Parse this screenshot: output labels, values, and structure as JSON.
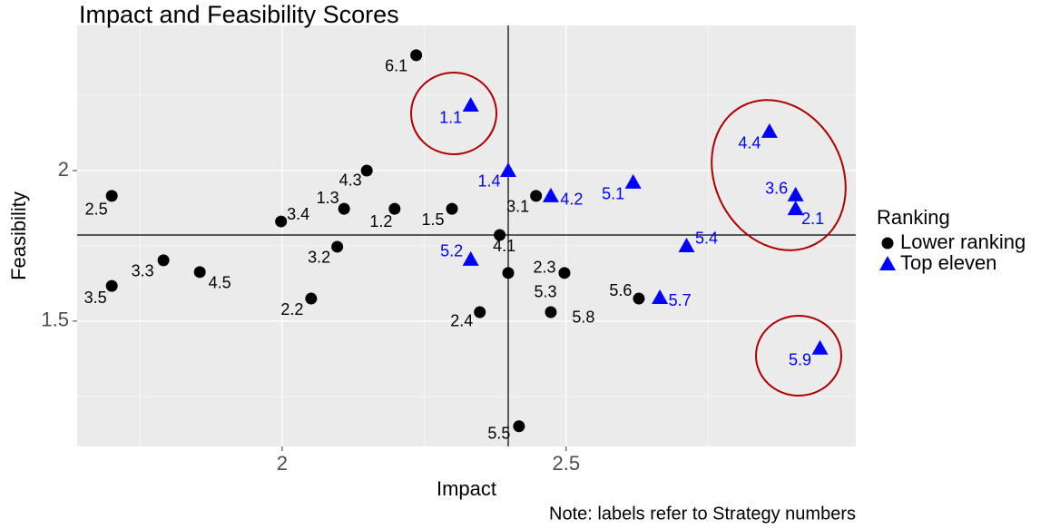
{
  "chart_data": {
    "type": "scatter",
    "title": "Impact and Feasibility Scores",
    "x_label": "Impact",
    "y_label": "Feasibility",
    "note": "Note: labels refer to Strategy numbers",
    "legend_title": "Ranking",
    "xlim": [
      1.639,
      3.01
    ],
    "ylim": [
      1.084,
      2.482
    ],
    "xticks": [
      2.0,
      2.5
    ],
    "yticks": [
      1.5,
      2.0
    ],
    "vline": 2.398,
    "hline": 1.786,
    "grid": true,
    "legend": "right",
    "series": [
      {
        "name": "Lower ranking",
        "color": "#000000",
        "shape": "circle",
        "labels": [
          "6.1",
          "4.3",
          "2.5",
          "1.3",
          "1.2",
          "1.5",
          "3.4",
          "3.1",
          "4.1",
          "3.2",
          "3.3",
          "4.5",
          "3.5",
          "2.3",
          "5.3",
          "2.2",
          "2.4",
          "5.8",
          "5.6",
          "5.5"
        ],
        "x": [
          2.236,
          2.149,
          1.7,
          2.109,
          2.198,
          2.299,
          1.998,
          2.447,
          2.383,
          2.097,
          1.791,
          1.855,
          1.7,
          2.398,
          2.497,
          2.051,
          2.348,
          2.473,
          2.628,
          2.417
        ],
        "values": [
          2.383,
          2.0,
          1.916,
          1.873,
          1.873,
          1.873,
          1.831,
          1.916,
          1.786,
          1.747,
          1.702,
          1.663,
          1.617,
          1.66,
          1.66,
          1.575,
          1.53,
          1.53,
          1.575,
          1.151
        ]
      },
      {
        "name": "Top eleven",
        "color": "#0000ff",
        "shape": "triangle",
        "labels": [
          "1.1",
          "1.4",
          "4.2",
          "5.1",
          "4.4",
          "3.6",
          "2.1",
          "5.4",
          "5.2",
          "5.7",
          "5.9"
        ],
        "x": [
          2.332,
          2.398,
          2.473,
          2.618,
          2.858,
          2.904,
          2.904,
          2.712,
          2.332,
          2.665,
          2.947
        ],
        "values": [
          2.217,
          2.0,
          1.916,
          1.961,
          2.13,
          1.919,
          1.873,
          1.75,
          1.705,
          1.578,
          1.41
        ]
      }
    ]
  }
}
